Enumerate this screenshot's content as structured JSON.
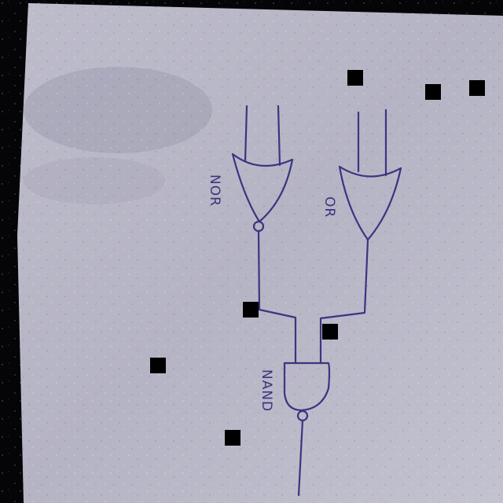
{
  "diagram": {
    "gates": [
      {
        "id": "nor",
        "label": "NOR"
      },
      {
        "id": "or",
        "label": "OR"
      },
      {
        "id": "nand",
        "label": "NAND"
      }
    ]
  },
  "colors": {
    "paper": "#b9b8c8",
    "ink": "#3a3580",
    "background": "#050508",
    "censor_block": "#000000"
  }
}
